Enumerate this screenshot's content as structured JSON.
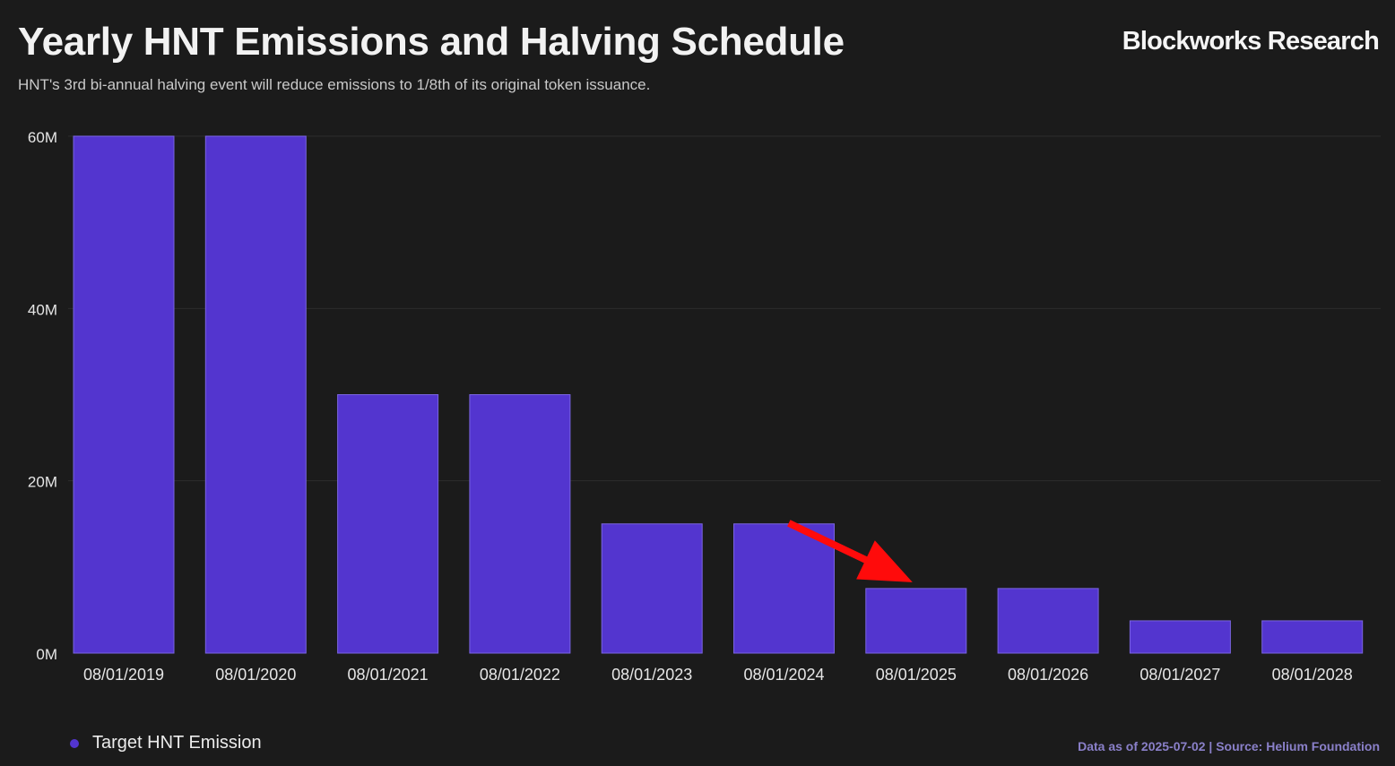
{
  "header": {
    "title": "Yearly HNT Emissions and Halving Schedule",
    "subtitle": "HNT's 3rd bi-annual halving event will reduce emissions to 1/8th of its original token issuance.",
    "brand": "Blockworks Research"
  },
  "footer": {
    "source": "Data as of 2025-07-02 | Source: Helium Foundation"
  },
  "colors": {
    "background": "#1b1b1b",
    "bar": "#5335cf",
    "bar_edge": "#7a64e0",
    "gridline": "#2c2c2c",
    "annotation_arrow": "#ff0b0b",
    "source_text": "#8a80c9"
  },
  "chart_data": {
    "type": "bar",
    "categories": [
      "08/01/2019",
      "08/01/2020",
      "08/01/2021",
      "08/01/2022",
      "08/01/2023",
      "08/01/2024",
      "08/01/2025",
      "08/01/2026",
      "08/01/2027",
      "08/01/2028"
    ],
    "series": [
      {
        "name": "Target HNT Emission",
        "values": [
          60000000,
          60000000,
          30000000,
          30000000,
          15000000,
          15000000,
          7500000,
          7500000,
          3750000,
          3750000
        ]
      }
    ],
    "ylim": [
      0,
      60000000
    ],
    "yticks": [
      {
        "value": 0,
        "label": "0M"
      },
      {
        "value": 20000000,
        "label": "20M"
      },
      {
        "value": 40000000,
        "label": "40M"
      },
      {
        "value": 60000000,
        "label": "60M"
      }
    ],
    "grid": true,
    "legend_position": "bottom-left",
    "annotation": {
      "type": "arrow",
      "points_to": "08/01/2025"
    }
  }
}
